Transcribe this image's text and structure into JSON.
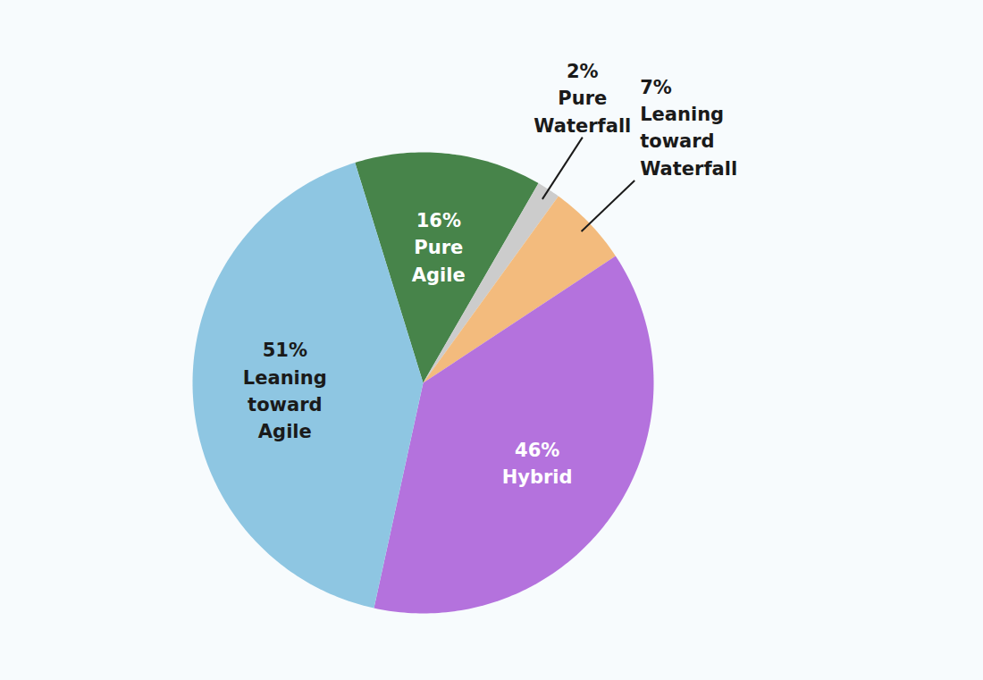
{
  "chart_data": {
    "type": "pie",
    "categories": [
      "Pure Agile",
      "Pure Waterfall",
      "Leaning toward Waterfall",
      "Hybrid",
      "Leaning toward Agile"
    ],
    "values": [
      16,
      2,
      7,
      46,
      51
    ],
    "value_labels": [
      "16%",
      "2%",
      "7%",
      "46%",
      "51%"
    ],
    "colors": [
      "#47844a",
      "#cccccc",
      "#f3bb7d",
      "#b472dd",
      "#8ec6e2"
    ],
    "data_labels": true
  }
}
